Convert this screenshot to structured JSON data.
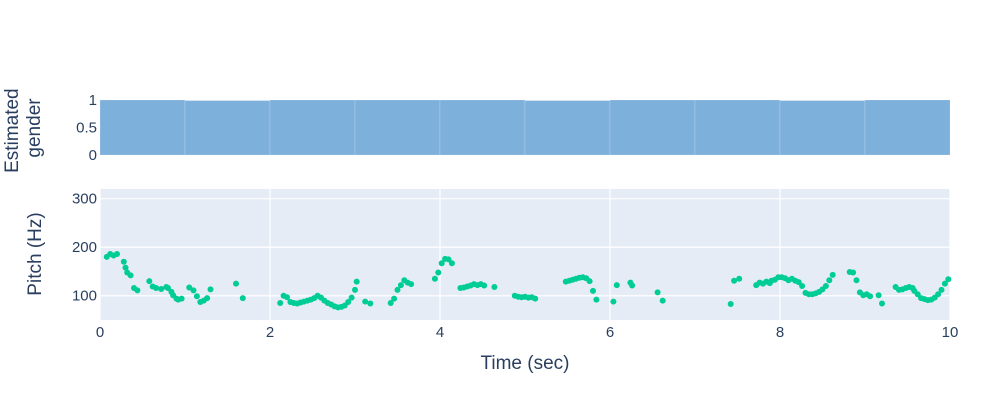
{
  "chart_data": [
    {
      "type": "bar",
      "ylabel": "Estimated gender",
      "ylabel_lines": [
        "Estimated",
        "gender"
      ],
      "ylim": [
        0,
        1
      ],
      "yticks": [
        0,
        0.5,
        1
      ],
      "ytick_labels": [
        "0",
        "0.5",
        "1"
      ],
      "xlim": [
        0,
        10
      ],
      "bar_color": "#7eb0dc",
      "bars": [
        {
          "x0": 0,
          "x1": 1,
          "value": 1.0
        },
        {
          "x0": 1,
          "x1": 2,
          "value": 0.99
        },
        {
          "x0": 2,
          "x1": 3,
          "value": 1.0
        },
        {
          "x0": 3,
          "x1": 4,
          "value": 1.0
        },
        {
          "x0": 4,
          "x1": 5,
          "value": 1.0
        },
        {
          "x0": 5,
          "x1": 6,
          "value": 0.99
        },
        {
          "x0": 6,
          "x1": 7,
          "value": 1.0
        },
        {
          "x0": 7,
          "x1": 8,
          "value": 1.0
        },
        {
          "x0": 8,
          "x1": 9,
          "value": 0.99
        },
        {
          "x0": 9,
          "x1": 10,
          "value": 1.0
        }
      ]
    },
    {
      "type": "scatter",
      "xlabel": "Time (sec)",
      "ylabel": "Pitch (Hz)",
      "xlim": [
        0,
        10
      ],
      "ylim": [
        50,
        320
      ],
      "xticks": [
        0,
        2,
        4,
        6,
        8,
        10
      ],
      "xtick_labels": [
        "0",
        "2",
        "4",
        "6",
        "8",
        "10"
      ],
      "yticks": [
        100,
        200,
        300
      ],
      "ytick_labels": [
        "100",
        "200",
        "300"
      ],
      "grid": true,
      "marker_color": "#00cc96",
      "x": [
        0.08,
        0.12,
        0.16,
        0.2,
        0.28,
        0.3,
        0.32,
        0.36,
        0.4,
        0.44,
        0.58,
        0.62,
        0.66,
        0.72,
        0.78,
        0.8,
        0.84,
        0.86,
        0.9,
        0.92,
        0.96,
        1.05,
        1.1,
        1.14,
        1.18,
        1.22,
        1.26,
        1.3,
        1.6,
        1.68,
        2.12,
        2.16,
        2.2,
        2.24,
        2.28,
        2.32,
        2.36,
        2.4,
        2.44,
        2.48,
        2.52,
        2.56,
        2.6,
        2.64,
        2.68,
        2.72,
        2.76,
        2.8,
        2.84,
        2.88,
        2.92,
        2.96,
        3.0,
        3.02,
        3.12,
        3.18,
        3.42,
        3.46,
        3.5,
        3.54,
        3.58,
        3.62,
        3.66,
        3.94,
        3.98,
        4.02,
        4.06,
        4.1,
        4.14,
        4.24,
        4.28,
        4.32,
        4.36,
        4.4,
        4.44,
        4.48,
        4.52,
        4.64,
        4.88,
        4.92,
        4.96,
        5.0,
        5.04,
        5.08,
        5.12,
        5.48,
        5.52,
        5.56,
        5.6,
        5.64,
        5.68,
        5.72,
        5.76,
        5.8,
        5.84,
        6.04,
        6.08,
        6.24,
        6.26,
        6.56,
        6.62,
        7.42,
        7.46,
        7.52,
        7.72,
        7.76,
        7.8,
        7.84,
        7.88,
        7.9,
        7.94,
        7.98,
        8.02,
        8.06,
        8.1,
        8.14,
        8.18,
        8.22,
        8.26,
        8.3,
        8.34,
        8.38,
        8.42,
        8.46,
        8.5,
        8.54,
        8.58,
        8.62,
        8.82,
        8.86,
        8.9,
        8.94,
        8.98,
        9.02,
        9.06,
        9.16,
        9.2,
        9.36,
        9.4,
        9.44,
        9.48,
        9.52,
        9.56,
        9.58,
        9.62,
        9.66,
        9.7,
        9.74,
        9.78,
        9.82,
        9.86,
        9.9,
        9.94,
        9.98
      ],
      "y": [
        180,
        186,
        183,
        186,
        170,
        158,
        148,
        142,
        116,
        111,
        130,
        119,
        116,
        114,
        118,
        116,
        108,
        101,
        94,
        92,
        94,
        117,
        111,
        99,
        87,
        90,
        95,
        113,
        125,
        95,
        85,
        100,
        97,
        87,
        85,
        84,
        86,
        88,
        90,
        92,
        95,
        100,
        96,
        90,
        85,
        82,
        78,
        76,
        77,
        80,
        87,
        96,
        112,
        129,
        88,
        84,
        85,
        94,
        112,
        122,
        132,
        127,
        124,
        135,
        148,
        167,
        176,
        175,
        167,
        116,
        117,
        119,
        121,
        124,
        122,
        124,
        121,
        118,
        100,
        98,
        97,
        98,
        96,
        97,
        94,
        129,
        131,
        133,
        135,
        137,
        138,
        136,
        130,
        110,
        92,
        88,
        122,
        127,
        121,
        107,
        90,
        83,
        131,
        135,
        122,
        127,
        125,
        129,
        126,
        131,
        133,
        138,
        138,
        136,
        132,
        135,
        131,
        128,
        120,
        106,
        103,
        103,
        105,
        108,
        113,
        120,
        132,
        143,
        149,
        148,
        132,
        107,
        101,
        103,
        99,
        101,
        84,
        118,
        112,
        113,
        116,
        118,
        116,
        110,
        103,
        95,
        93,
        91,
        92,
        96,
        103,
        112,
        125,
        134
      ]
    }
  ]
}
